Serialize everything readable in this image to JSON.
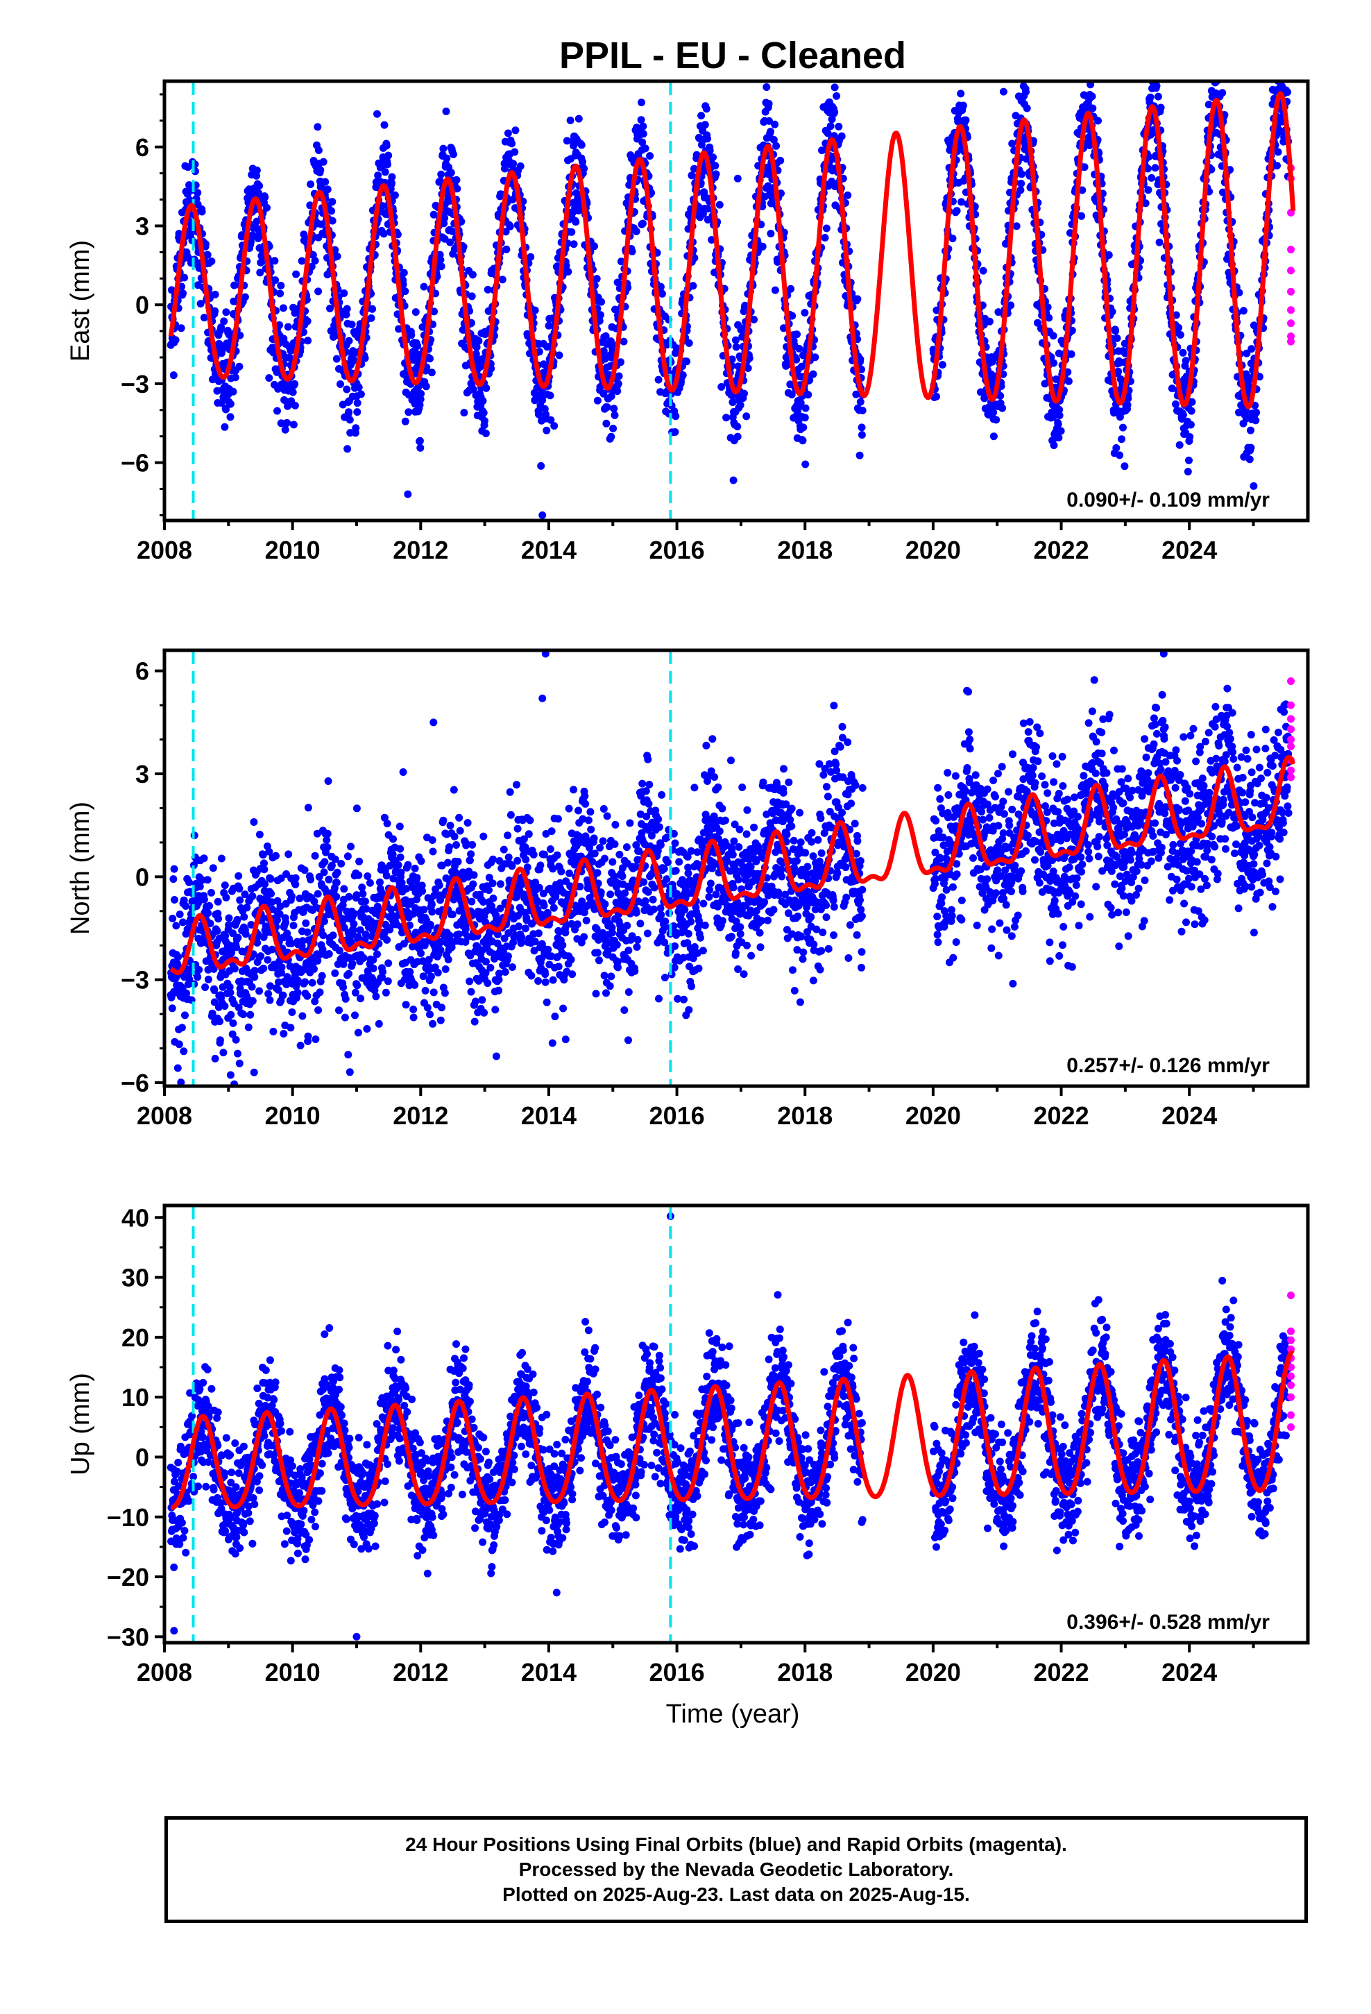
{
  "chart_data": {
    "title": "PPIL  - EU - Cleaned",
    "type": "scatter",
    "xlabel": "Time (year)",
    "x_ticks": [
      "2008",
      "2010",
      "2012",
      "2014",
      "2016",
      "2018",
      "2020",
      "2022",
      "2024"
    ],
    "xlim": [
      2008.0,
      2025.85
    ],
    "x_data_range": [
      2008.1,
      2025.62
    ],
    "rapid_x_range": [
      2025.55,
      2025.62
    ],
    "data_gap": [
      2018.9,
      2020.0
    ],
    "vertical_lines": [
      2008.45,
      2015.9
    ],
    "colors": {
      "final_orbits": "#0000ff",
      "rapid_orbits": "#ff00ff",
      "model_fit": "#ff0000",
      "events": "#00e5ee"
    },
    "panels": [
      {
        "name": "east",
        "ylabel": "East (mm)",
        "ylim": [
          -8.2,
          8.5
        ],
        "y_ticks": [
          6,
          3,
          0,
          -3,
          -6
        ],
        "rate_text": "0.090+/- 0.109 mm/yr",
        "fit": {
          "offset": 0.3,
          "trend": 0.09,
          "annual_amp": 3.2,
          "annual_peak": 0.42,
          "semi_amp": 0.2,
          "amp_growth": 0.05
        },
        "scatter": {
          "noise": 1.1,
          "outliers": [
            [
              2021.1,
              8.1
            ],
            [
              2013.9,
              -8.0
            ],
            [
              2011.8,
              -7.2
            ],
            [
              2016.95,
              4.8
            ],
            [
              2024.3,
              7.1
            ]
          ]
        },
        "rapid_values": [
          5.2,
          4.8,
          3.5,
          2.1,
          0.5,
          -0.2,
          -0.7,
          -1.2,
          -1.4,
          1.3
        ]
      },
      {
        "name": "north",
        "ylabel": "North (mm)",
        "ylim": [
          -6.1,
          6.6
        ],
        "y_ticks": [
          6,
          3,
          0,
          -3,
          -6
        ],
        "rate_text": "0.257+/- 0.126 mm/yr",
        "fit": {
          "offset": -2.3,
          "trend": 0.257,
          "annual_amp": 0.7,
          "annual_peak": 0.55,
          "semi_amp": 0.35,
          "amp_growth": 0.02
        },
        "scatter": {
          "noise": 1.2,
          "outliers": [
            [
              2013.95,
              6.5
            ],
            [
              2023.6,
              6.5
            ],
            [
              2013.9,
              5.2
            ],
            [
              2009.4,
              -5.7
            ],
            [
              2012.2,
              4.5
            ]
          ]
        },
        "rapid_values": [
          5.7,
          5.0,
          4.6,
          4.3,
          4.0,
          3.8,
          3.4,
          3.1,
          2.9
        ]
      },
      {
        "name": "up",
        "ylabel": "Up (mm)",
        "ylim": [
          -31,
          42
        ],
        "y_ticks": [
          40,
          30,
          20,
          10,
          0,
          -10,
          -20,
          -30
        ],
        "rate_text": "0.396+/- 0.528 mm/yr",
        "fit": {
          "offset": -2.0,
          "trend": 0.396,
          "annual_amp": 7.5,
          "annual_peak": 0.6,
          "semi_amp": 1.0,
          "amp_growth": 0.03
        },
        "scatter": {
          "noise": 4.5,
          "outliers": [
            [
              2015.9,
              40.2
            ],
            [
              2008.15,
              -29.0
            ],
            [
              2011.0,
              -30.0
            ],
            [
              2010.5,
              20.5
            ],
            [
              2012.7,
              18.0
            ]
          ]
        },
        "rapid_values": [
          27,
          21,
          19.5,
          18,
          16.5,
          15,
          13.5,
          12,
          10,
          7,
          5
        ]
      }
    ],
    "footer_lines": [
      "24 Hour Positions Using Final Orbits (blue) and Rapid Orbits (magenta).",
      "Processed by the Nevada Geodetic Laboratory.",
      "Plotted on 2025-Aug-23. Last data on 2025-Aug-15."
    ]
  }
}
